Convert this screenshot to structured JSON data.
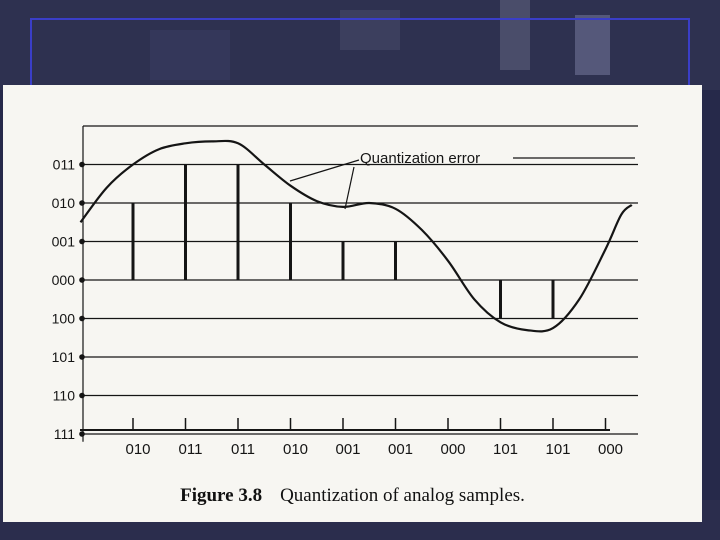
{
  "colors": {
    "slide_background": "#f7f6f2",
    "ink": "#151515",
    "frame_blue": "#3a3ec8",
    "photo_dark": "#26294a"
  },
  "caption": {
    "label": "Figure 3.8",
    "text": "Quantization of analog samples."
  },
  "chart_data": {
    "type": "line",
    "title": "",
    "annotation": "Quantization error",
    "levels": [
      "011",
      "010",
      "001",
      "000",
      "100",
      "101",
      "110",
      "111"
    ],
    "y_axis": {
      "range": [
        -3.5,
        4.0
      ],
      "grid": true
    },
    "samples": [
      {
        "t": 1,
        "code": "010",
        "level": 2
      },
      {
        "t": 2,
        "code": "011",
        "level": 3
      },
      {
        "t": 3,
        "code": "011",
        "level": 3
      },
      {
        "t": 4,
        "code": "010",
        "level": 2
      },
      {
        "t": 5,
        "code": "001",
        "level": 1
      },
      {
        "t": 6,
        "code": "001",
        "level": 1
      },
      {
        "t": 7,
        "code": "000",
        "level": 0
      },
      {
        "t": 8,
        "code": "101",
        "level": -1
      },
      {
        "t": 9,
        "code": "101",
        "level": -1
      },
      {
        "t": 10,
        "code": "000",
        "level": 0
      }
    ],
    "signal": {
      "t": [
        0,
        0.5,
        1,
        1.5,
        2,
        2.5,
        3,
        3.5,
        4,
        4.5,
        5,
        5.5,
        6,
        6.5,
        7,
        7.5,
        8,
        8.5,
        9,
        9.5,
        10,
        10.3,
        10.5
      ],
      "y": [
        1.5,
        2.4,
        3.0,
        3.4,
        3.55,
        3.6,
        3.55,
        3.0,
        2.45,
        2.05,
        1.9,
        2.0,
        1.85,
        1.3,
        0.5,
        -0.5,
        -1.1,
        -1.3,
        -1.25,
        -0.5,
        0.8,
        1.7,
        1.95
      ]
    }
  }
}
